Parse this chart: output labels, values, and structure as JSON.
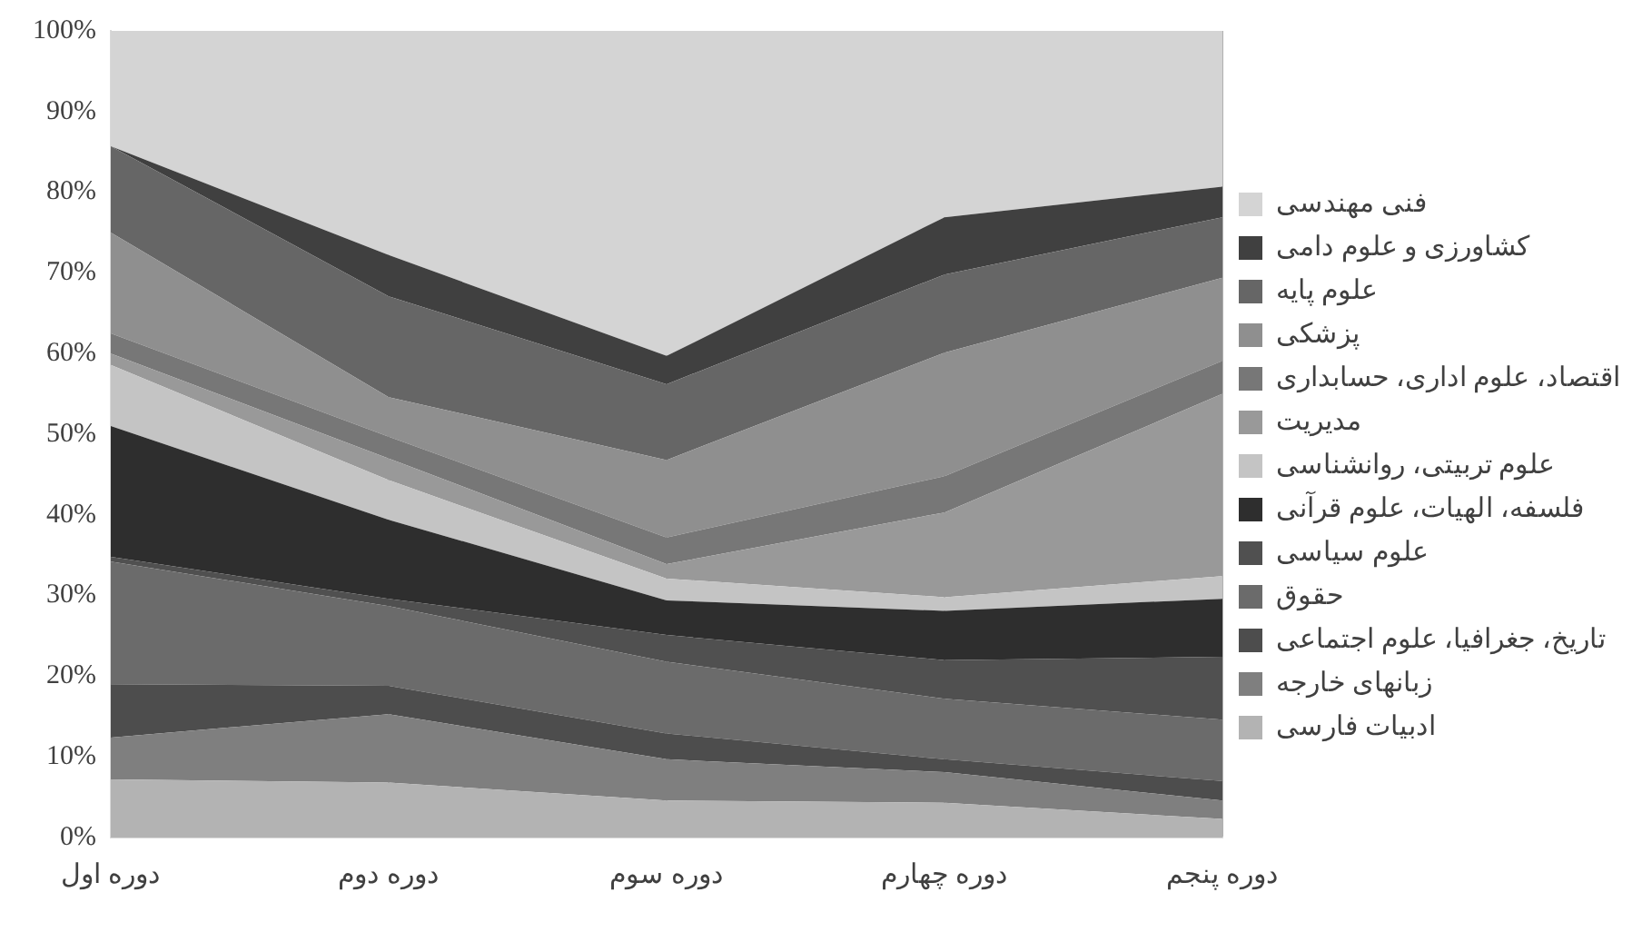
{
  "chart_data": {
    "type": "area",
    "stacked": true,
    "categories": [
      "دوره اول",
      "دوره دوم",
      "دوره سوم",
      "دوره چهارم",
      "دوره پنجم"
    ],
    "ylim": [
      0,
      100
    ],
    "yticks": [
      {
        "value": 0,
        "label": "0%"
      },
      {
        "value": 10,
        "label": "10%"
      },
      {
        "value": 20,
        "label": "20%"
      },
      {
        "value": 30,
        "label": "30%"
      },
      {
        "value": 40,
        "label": "40%"
      },
      {
        "value": 50,
        "label": "50%"
      },
      {
        "value": 60,
        "label": "60%"
      },
      {
        "value": 70,
        "label": "70%"
      },
      {
        "value": 80,
        "label": "80%"
      },
      {
        "value": 90,
        "label": "90%"
      },
      {
        "value": 100,
        "label": "100%"
      }
    ],
    "grid": "x",
    "legend": "right",
    "series": [
      {
        "name": "ادبیات فارسی",
        "color": "#b3b3b3",
        "values": [
          7.2,
          6.8,
          4.6,
          4.3,
          2.3
        ]
      },
      {
        "name": "زبانهای خارجه",
        "color": "#7f7f7f",
        "values": [
          5.2,
          8.5,
          5.1,
          3.8,
          2.3
        ]
      },
      {
        "name": "تاریخ، جغرافیا، علوم اجتماعی",
        "color": "#4d4d4d",
        "values": [
          6.6,
          3.5,
          3.2,
          1.6,
          2.4
        ]
      },
      {
        "name": "حقوق",
        "color": "#6b6b6b",
        "values": [
          15.2,
          9.9,
          8.9,
          7.5,
          7.6
        ]
      },
      {
        "name": "علوم سیاسی",
        "color": "#505050",
        "values": [
          0.6,
          0.9,
          3.3,
          4.8,
          7.8
        ]
      },
      {
        "name": "فلسفه، الهیات، علوم قرآنی",
        "color": "#2e2e2e",
        "values": [
          16.2,
          9.8,
          4.3,
          6.1,
          7.2
        ]
      },
      {
        "name": "علوم تربیتی، روانشناسی",
        "color": "#c4c4c4",
        "values": [
          7.6,
          4.9,
          2.7,
          1.7,
          2.8
        ]
      },
      {
        "name": "مدیریت",
        "color": "#999999",
        "values": [
          1.4,
          2.7,
          1.8,
          10.5,
          22.6
        ]
      },
      {
        "name": "اقتصاد، علوم اداری، حسابداری",
        "color": "#777777",
        "values": [
          2.5,
          2.7,
          3.3,
          4.5,
          4.1
        ]
      },
      {
        "name": "پزشکی",
        "color": "#8f8f8f",
        "values": [
          12.5,
          4.9,
          9.6,
          15.3,
          10.3
        ]
      },
      {
        "name": "علوم پایه",
        "color": "#666666",
        "values": [
          10.7,
          12.5,
          9.4,
          9.7,
          7.5
        ]
      },
      {
        "name": "کشاورزی و علوم دامی",
        "color": "#404040",
        "values": [
          0,
          5.1,
          3.5,
          7.1,
          3.8
        ]
      },
      {
        "name": "فنی مهندسی",
        "color": "#d4d4d4",
        "values": [
          14.3,
          27.8,
          40.3,
          23.1,
          19.3
        ]
      }
    ]
  }
}
